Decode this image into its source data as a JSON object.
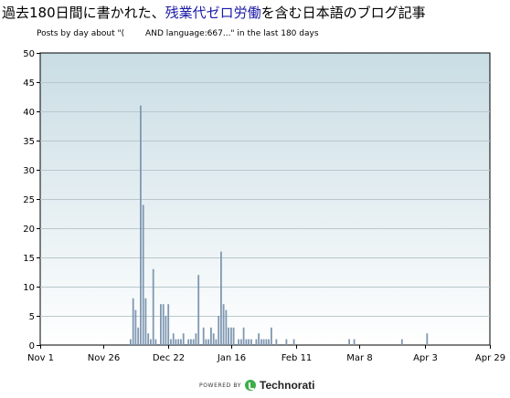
{
  "header": {
    "title_prefix": "過去180日間に書かれた、",
    "title_keyword": "残業代ゼロ労働",
    "title_suffix": "を含む日本語のブログ記事",
    "subtitle": "Posts by day about \"(        AND language:667...\" in the last 180 days"
  },
  "footer": {
    "powered_by": "POWERED BY",
    "brand": "Technorati"
  },
  "chart_data": {
    "type": "bar",
    "ylim": [
      0,
      50
    ],
    "yticks": [
      0,
      5,
      10,
      15,
      20,
      25,
      30,
      35,
      40,
      45,
      50
    ],
    "x_start": "Nov 1",
    "x_days": 180,
    "xticks": [
      {
        "label": "Nov 1",
        "day": 0
      },
      {
        "label": "Nov 26",
        "day": 25
      },
      {
        "label": "Dec 22",
        "day": 51
      },
      {
        "label": "Jan 16",
        "day": 76
      },
      {
        "label": "Feb 11",
        "day": 102
      },
      {
        "label": "Mar 8",
        "day": 127
      },
      {
        "label": "Apr 3",
        "day": 153
      },
      {
        "label": "Apr 29",
        "day": 179
      }
    ],
    "grid": true,
    "bar_color": "#7f98b2",
    "background_top": "#c9dde4",
    "background_bottom": "#ffffff",
    "x": [
      36,
      37,
      38,
      39,
      40,
      41,
      42,
      43,
      44,
      45,
      46,
      48,
      49,
      50,
      51,
      52,
      53,
      54,
      55,
      56,
      57,
      59,
      60,
      61,
      62,
      63,
      65,
      66,
      67,
      68,
      69,
      70,
      71,
      72,
      73,
      74,
      75,
      76,
      77,
      79,
      80,
      81,
      82,
      83,
      84,
      86,
      87,
      88,
      89,
      90,
      91,
      92,
      94,
      98,
      101,
      123,
      125,
      144,
      154
    ],
    "values": [
      1,
      8,
      6,
      3,
      41,
      24,
      8,
      2,
      1,
      13,
      1,
      7,
      7,
      5,
      7,
      1,
      2,
      1,
      1,
      1,
      2,
      1,
      1,
      1,
      2,
      12,
      3,
      1,
      1,
      3,
      2,
      1,
      5,
      16,
      7,
      6,
      3,
      3,
      3,
      1,
      1,
      3,
      1,
      1,
      1,
      1,
      2,
      1,
      1,
      1,
      1,
      3,
      1,
      1,
      1,
      1,
      1,
      1,
      2
    ]
  }
}
